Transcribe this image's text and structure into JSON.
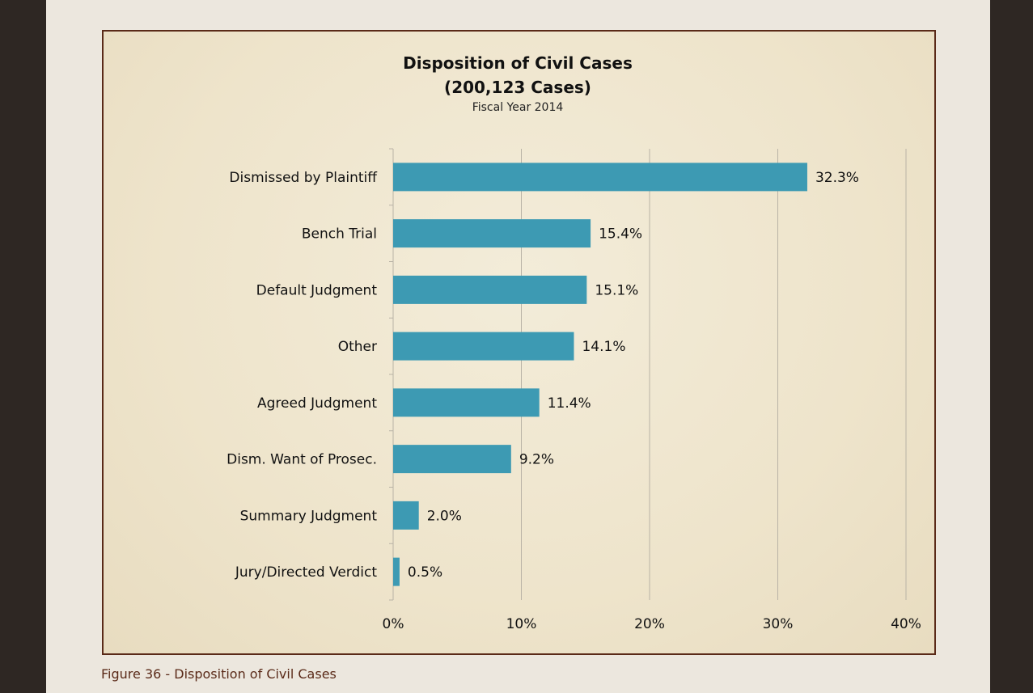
{
  "caption": "Figure 36 - Disposition of Civil Cases",
  "chart_data": {
    "type": "bar",
    "orientation": "horizontal",
    "title": "Disposition of Civil Cases",
    "title_line2": "(200,123 Cases)",
    "subtitle": "Fiscal Year 2014",
    "categories": [
      "Dismissed by Plaintiff",
      "Bench Trial",
      "Default Judgment",
      "Other",
      "Agreed Judgment",
      "Dism. Want of Prosec.",
      "Summary Judgment",
      "Jury/Directed Verdict"
    ],
    "values": [
      32.3,
      15.4,
      15.1,
      14.1,
      11.4,
      9.2,
      2.0,
      0.5
    ],
    "value_labels": [
      "32.3%",
      "15.4%",
      "15.1%",
      "14.1%",
      "11.4%",
      "9.2%",
      "2.0%",
      "0.5%"
    ],
    "x_ticks": [
      0,
      10,
      20,
      30,
      40
    ],
    "x_tick_labels": [
      "0%",
      "10%",
      "20%",
      "30%",
      "40%"
    ],
    "xlim": [
      0,
      40
    ],
    "grid": true,
    "legend": "none",
    "colors": {
      "bar": "#3d9ab3",
      "grid": "#b9b3a6",
      "frame": "#5a2a18",
      "caption": "#5a2a18"
    }
  }
}
